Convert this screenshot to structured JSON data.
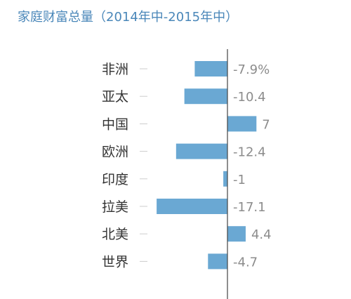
{
  "chart_data": {
    "type": "bar",
    "orientation": "horizontal",
    "title": "家庭财富总量（2014年中-2015年中）",
    "categories": [
      "非洲",
      "亚太",
      "中国",
      "欧洲",
      "印度",
      "拉美",
      "北美",
      "世界"
    ],
    "values": [
      -7.9,
      -10.4,
      7,
      -12.4,
      -1,
      -17.1,
      4.4,
      -4.7
    ],
    "value_labels": [
      "-7.9%",
      "-10.4",
      "7",
      "-12.4",
      "-1",
      "-17.1",
      "4.4",
      "-4.7"
    ],
    "xlim": [
      -20,
      8
    ],
    "grid": false,
    "colors": {
      "bar": "#6aa8d3",
      "axis": "#444444",
      "title": "#4a87b9",
      "tick": "#cccccc"
    }
  }
}
